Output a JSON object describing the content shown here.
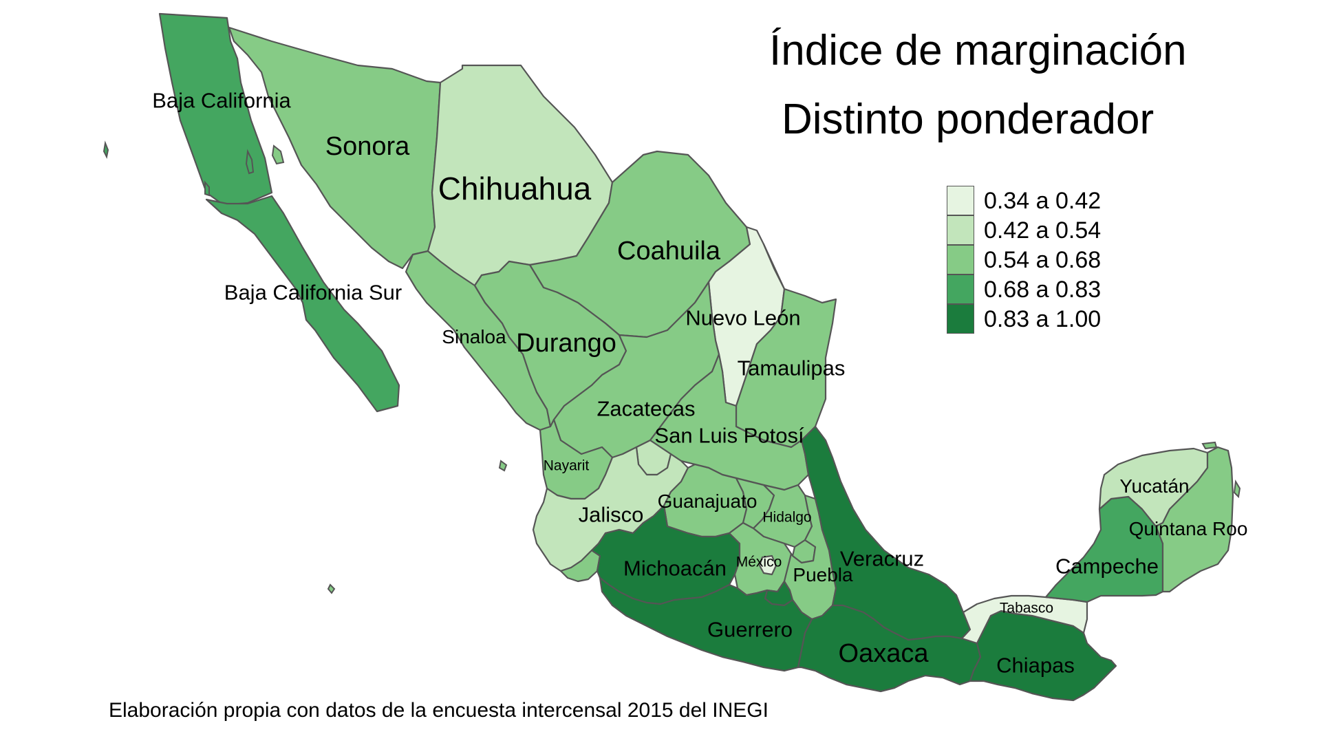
{
  "title": {
    "line1": "Índice de marginación",
    "line2": "Distinto ponderador"
  },
  "caption": "Elaboración propia con datos de la encuesta intercensal 2015 del INEGI",
  "legend": [
    {
      "label": "0.34 a 0.42",
      "color": "#e6f4e1"
    },
    {
      "label": "0.42 a 0.54",
      "color": "#c2e5bb"
    },
    {
      "label": "0.54 a 0.68",
      "color": "#86cb86"
    },
    {
      "label": "0.68 a 0.83",
      "color": "#44a660"
    },
    {
      "label": "0.83 a 1.00",
      "color": "#1b7c3d"
    }
  ],
  "states": {
    "baja_california": {
      "name": "Baja California",
      "class": 3
    },
    "baja_california_sur": {
      "name": "Baja California Sur",
      "class": 3
    },
    "sonora": {
      "name": "Sonora",
      "class": 2
    },
    "chihuahua": {
      "name": "Chihuahua",
      "class": 1
    },
    "coahuila": {
      "name": "Coahuila",
      "class": 2
    },
    "nuevo_leon": {
      "name": "Nuevo León",
      "class": 0
    },
    "tamaulipas": {
      "name": "Tamaulipas",
      "class": 2
    },
    "sinaloa": {
      "name": "Sinaloa",
      "class": 2
    },
    "durango": {
      "name": "Durango",
      "class": 2
    },
    "zacatecas": {
      "name": "Zacatecas",
      "class": 2
    },
    "san_luis_potosi": {
      "name": "San Luis Potosí",
      "class": 2
    },
    "nayarit": {
      "name": "Nayarit",
      "class": 2
    },
    "aguascalientes": {
      "name": "",
      "class": 1
    },
    "jalisco": {
      "name": "Jalisco",
      "class": 1
    },
    "guanajuato": {
      "name": "Guanajuato",
      "class": 2
    },
    "queretaro": {
      "name": "",
      "class": 2
    },
    "hidalgo": {
      "name": "Hidalgo",
      "class": 2
    },
    "michoacan": {
      "name": "Michoacán",
      "class": 4
    },
    "colima": {
      "name": "",
      "class": 2
    },
    "mexico": {
      "name": "México",
      "class": 2
    },
    "cdmx": {
      "name": "",
      "class": 0
    },
    "morelos": {
      "name": "",
      "class": 4
    },
    "tlaxcala": {
      "name": "",
      "class": 2
    },
    "puebla": {
      "name": "Puebla",
      "class": 2
    },
    "veracruz": {
      "name": "Veracruz",
      "class": 4
    },
    "guerrero": {
      "name": "Guerrero",
      "class": 4
    },
    "oaxaca": {
      "name": "Oaxaca",
      "class": 4
    },
    "chiapas": {
      "name": "Chiapas",
      "class": 4
    },
    "tabasco": {
      "name": "Tabasco",
      "class": 0
    },
    "campeche": {
      "name": "Campeche",
      "class": 3
    },
    "yucatan": {
      "name": "Yucatán",
      "class": 1
    },
    "quintana_roo": {
      "name": "Quintana Roo",
      "class": 2
    }
  }
}
